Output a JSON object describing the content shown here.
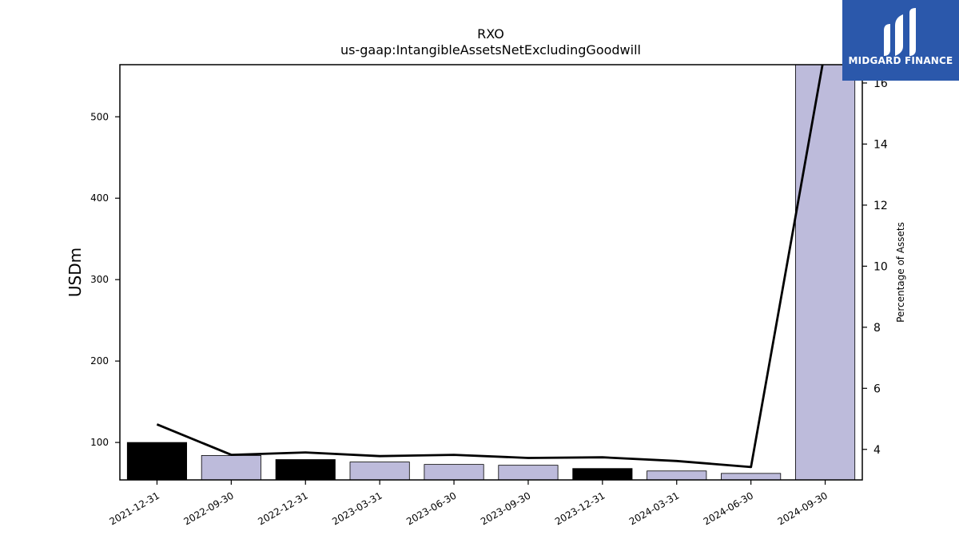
{
  "logo": {
    "text": "MIDGARD FINANCE",
    "bg_color": "#2b58ab",
    "fg_color": "#ffffff"
  },
  "chart_data": {
    "type": "bar",
    "title": "RXO",
    "subtitle": "us-gaap:IntangibleAssetsNetExcludingGoodwill",
    "ylabel": "USDm",
    "y2label": "Percentage of Assets",
    "categories": [
      "2021-12-31",
      "2022-09-30",
      "2022-12-31",
      "2023-03-31",
      "2023-06-30",
      "2023-09-30",
      "2023-12-31",
      "2024-03-31",
      "2024-06-30",
      "2024-09-30"
    ],
    "values": [
      100,
      84,
      79,
      76,
      73,
      72,
      68,
      65,
      62,
      566
    ],
    "bar_colors": [
      "#000000",
      "#bdbbdb",
      "#000000",
      "#bdbbdb",
      "#bdbbdb",
      "#bdbbdb",
      "#000000",
      "#bdbbdb",
      "#bdbbdb",
      "#bdbbdb"
    ],
    "ylim": [
      54,
      564
    ],
    "yticks": [
      100,
      200,
      300,
      400,
      500
    ],
    "line_series": {
      "name": "Percentage of Assets",
      "values": [
        4.82,
        3.82,
        3.9,
        3.78,
        3.82,
        3.72,
        3.74,
        3.62,
        3.42,
        17.1
      ],
      "color": "#000000"
    },
    "y2lim": [
      3.0,
      16.6
    ],
    "y2ticks": [
      4,
      6,
      8,
      10,
      12,
      14,
      16
    ],
    "grid": false
  }
}
